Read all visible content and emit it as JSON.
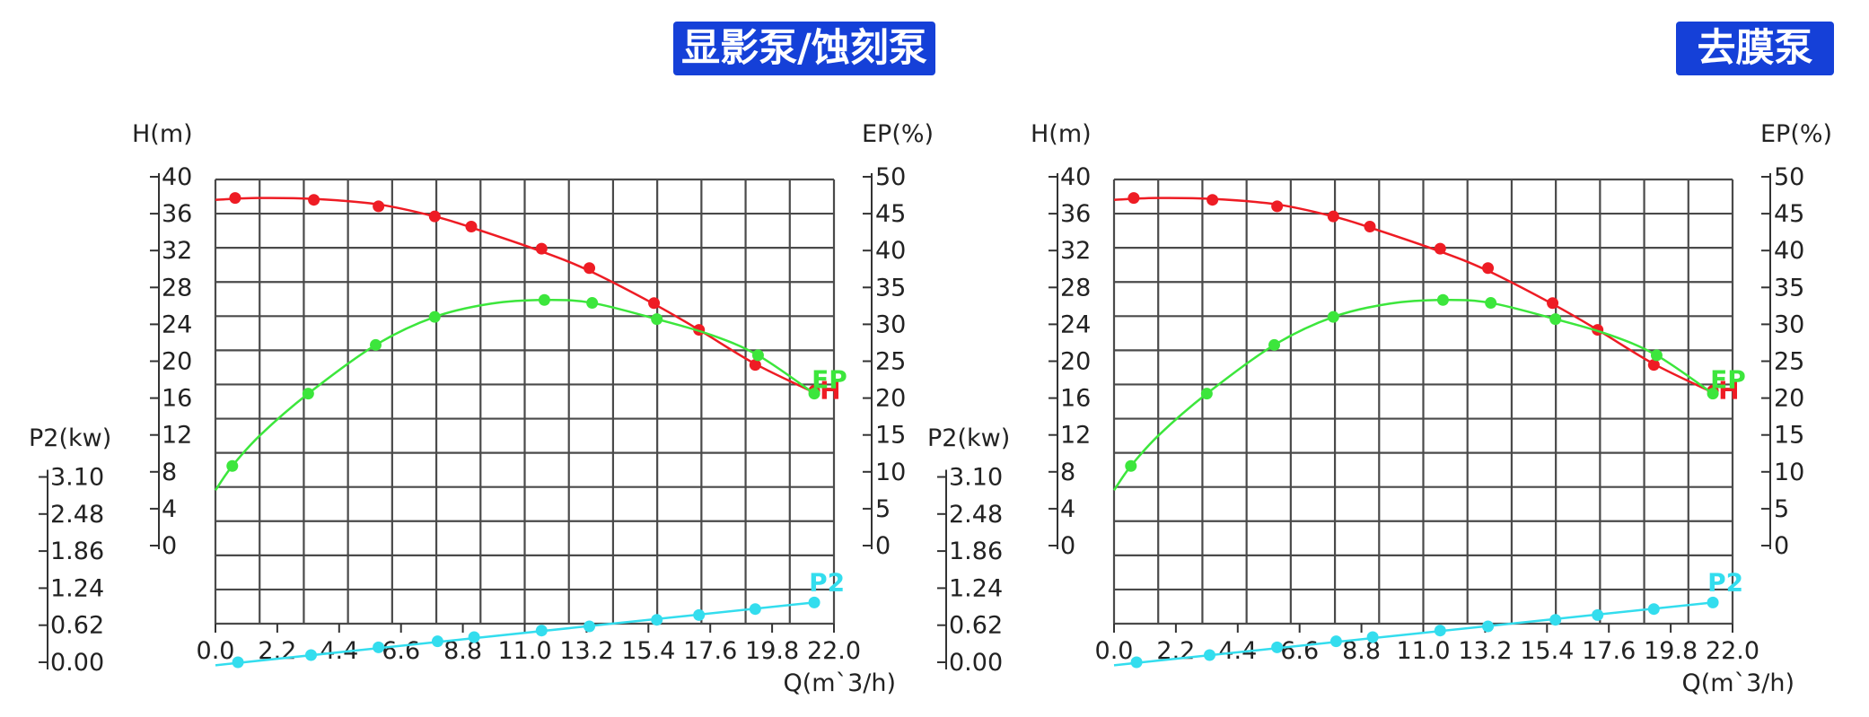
{
  "colors": {
    "title_bg": "#1540d8",
    "title_text": "#ffffff",
    "grid": "#4a4a4a",
    "axis": "#333333",
    "H": "#ee1c24",
    "EP": "#3ce63c",
    "P2": "#33ddee"
  },
  "chart_data": [
    {
      "type": "line",
      "title": "显影泵/蚀刻泵",
      "xlabel": "Q(m`3/h)",
      "ylabel_left": "H(m)",
      "ylabel_right": "EP(%)",
      "ylabel_power": "P2(kw)",
      "x_ticks": [
        "0.0",
        "2.2",
        "4.4",
        "6.6",
        "8.8",
        "11.0",
        "13.2",
        "15.4",
        "17.6",
        "19.8",
        "22.0"
      ],
      "h_ticks": [
        "0",
        "4",
        "8",
        "12",
        "16",
        "20",
        "24",
        "28",
        "32",
        "36",
        "40"
      ],
      "ep_ticks": [
        "0",
        "5",
        "10",
        "15",
        "20",
        "25",
        "30",
        "35",
        "40",
        "45",
        "50"
      ],
      "p2_ticks": [
        "0.00",
        "0.62",
        "1.24",
        "1.86",
        "2.48",
        "3.10"
      ],
      "xlim": [
        0,
        22
      ],
      "h_lim": [
        0,
        40
      ],
      "ep_lim": [
        0,
        50
      ],
      "p2_lim": [
        0,
        3.1
      ],
      "grid": true,
      "series": [
        {
          "name": "H",
          "axis": "H",
          "color": "#ee1c24",
          "points": [
            [
              0.7,
              37.7
            ],
            [
              3.5,
              37.5
            ],
            [
              5.8,
              36.8
            ],
            [
              7.8,
              35.7
            ],
            [
              9.1,
              34.6
            ],
            [
              11.6,
              32.2
            ],
            [
              13.3,
              30.1
            ],
            [
              15.6,
              26.3
            ],
            [
              17.2,
              23.4
            ],
            [
              19.2,
              19.6
            ],
            [
              21.3,
              16.8
            ]
          ],
          "curve": [
            [
              0,
              37.5
            ],
            [
              1.5,
              37.7
            ],
            [
              3.5,
              37.6
            ],
            [
              5.8,
              37.0
            ],
            [
              7.8,
              35.7
            ],
            [
              9.1,
              34.5
            ],
            [
              11.6,
              31.9
            ],
            [
              13.3,
              29.8
            ],
            [
              15.6,
              26.2
            ],
            [
              17.2,
              23.4
            ],
            [
              19.2,
              19.7
            ],
            [
              21.3,
              16.6
            ]
          ]
        },
        {
          "name": "EP",
          "axis": "EP",
          "color": "#3ce63c",
          "points": [
            [
              0.6,
              10.8
            ],
            [
              3.3,
              20.6
            ],
            [
              5.7,
              27.2
            ],
            [
              7.8,
              31.0
            ],
            [
              11.7,
              33.3
            ],
            [
              13.4,
              32.9
            ],
            [
              15.7,
              30.7
            ],
            [
              19.3,
              25.8
            ],
            [
              21.3,
              20.6
            ]
          ],
          "curve": [
            [
              0,
              7.5
            ],
            [
              0.6,
              10.8
            ],
            [
              1.6,
              15.0
            ],
            [
              3.3,
              20.6
            ],
            [
              5.7,
              27.2
            ],
            [
              7.8,
              31.0
            ],
            [
              9.8,
              32.8
            ],
            [
              11.7,
              33.3
            ],
            [
              13.4,
              32.9
            ],
            [
              15.7,
              30.7
            ],
            [
              17.6,
              28.6
            ],
            [
              19.3,
              25.8
            ],
            [
              21.3,
              20.6
            ]
          ]
        },
        {
          "name": "P2",
          "axis": "P2",
          "color": "#33ddee",
          "points": [
            [
              0.8,
              0.0
            ],
            [
              3.4,
              0.12
            ],
            [
              5.8,
              0.25
            ],
            [
              7.9,
              0.35
            ],
            [
              9.2,
              0.42
            ],
            [
              11.6,
              0.53
            ],
            [
              13.3,
              0.6
            ],
            [
              15.7,
              0.71
            ],
            [
              17.2,
              0.79
            ],
            [
              19.2,
              0.89
            ],
            [
              21.3,
              1.0
            ]
          ],
          "curve": [
            [
              0,
              -0.05
            ],
            [
              21.3,
              1.0
            ]
          ]
        }
      ],
      "curve_labels": {
        "EP": "EP",
        "H": "H",
        "P2": "P2"
      }
    },
    {
      "type": "line",
      "title": "去膜泵",
      "xlabel": "Q(m`3/h)",
      "ylabel_left": "H(m)",
      "ylabel_right": "EP(%)",
      "ylabel_power": "P2(kw)",
      "x_ticks": [
        "0.0",
        "2.2",
        "4.4",
        "6.6",
        "8.8",
        "11.0",
        "13.2",
        "15.4",
        "17.6",
        "19.8",
        "22.0"
      ],
      "h_ticks": [
        "0",
        "4",
        "8",
        "12",
        "16",
        "20",
        "24",
        "28",
        "32",
        "36",
        "40"
      ],
      "ep_ticks": [
        "0",
        "5",
        "10",
        "15",
        "20",
        "25",
        "30",
        "35",
        "40",
        "45",
        "50"
      ],
      "p2_ticks": [
        "0.00",
        "0.62",
        "1.24",
        "1.86",
        "2.48",
        "3.10"
      ],
      "xlim": [
        0,
        22
      ],
      "h_lim": [
        0,
        40
      ],
      "ep_lim": [
        0,
        50
      ],
      "p2_lim": [
        0,
        3.1
      ],
      "grid": true,
      "series": [
        {
          "name": "H",
          "axis": "H",
          "color": "#ee1c24",
          "points": [
            [
              0.7,
              37.7
            ],
            [
              3.5,
              37.5
            ],
            [
              5.8,
              36.8
            ],
            [
              7.8,
              35.7
            ],
            [
              9.1,
              34.6
            ],
            [
              11.6,
              32.2
            ],
            [
              13.3,
              30.1
            ],
            [
              15.6,
              26.3
            ],
            [
              17.2,
              23.4
            ],
            [
              19.2,
              19.6
            ],
            [
              21.3,
              16.8
            ]
          ],
          "curve": [
            [
              0,
              37.5
            ],
            [
              1.5,
              37.7
            ],
            [
              3.5,
              37.6
            ],
            [
              5.8,
              37.0
            ],
            [
              7.8,
              35.7
            ],
            [
              9.1,
              34.5
            ],
            [
              11.6,
              31.9
            ],
            [
              13.3,
              29.8
            ],
            [
              15.6,
              26.2
            ],
            [
              17.2,
              23.4
            ],
            [
              19.2,
              19.7
            ],
            [
              21.3,
              16.6
            ]
          ]
        },
        {
          "name": "EP",
          "axis": "EP",
          "color": "#3ce63c",
          "points": [
            [
              0.6,
              10.8
            ],
            [
              3.3,
              20.6
            ],
            [
              5.7,
              27.2
            ],
            [
              7.8,
              31.0
            ],
            [
              11.7,
              33.3
            ],
            [
              13.4,
              32.9
            ],
            [
              15.7,
              30.7
            ],
            [
              19.3,
              25.8
            ],
            [
              21.3,
              20.6
            ]
          ],
          "curve": [
            [
              0,
              7.5
            ],
            [
              0.6,
              10.8
            ],
            [
              1.6,
              15.0
            ],
            [
              3.3,
              20.6
            ],
            [
              5.7,
              27.2
            ],
            [
              7.8,
              31.0
            ],
            [
              9.8,
              32.8
            ],
            [
              11.7,
              33.3
            ],
            [
              13.4,
              32.9
            ],
            [
              15.7,
              30.7
            ],
            [
              17.6,
              28.6
            ],
            [
              19.3,
              25.8
            ],
            [
              21.3,
              20.6
            ]
          ]
        },
        {
          "name": "P2",
          "axis": "P2",
          "color": "#33ddee",
          "points": [
            [
              0.8,
              0.0
            ],
            [
              3.4,
              0.12
            ],
            [
              5.8,
              0.25
            ],
            [
              7.9,
              0.35
            ],
            [
              9.2,
              0.42
            ],
            [
              11.6,
              0.53
            ],
            [
              13.3,
              0.6
            ],
            [
              15.7,
              0.71
            ],
            [
              17.2,
              0.79
            ],
            [
              19.2,
              0.89
            ],
            [
              21.3,
              1.0
            ]
          ],
          "curve": [
            [
              0,
              -0.05
            ],
            [
              21.3,
              1.0
            ]
          ]
        }
      ],
      "curve_labels": {
        "EP": "EP",
        "H": "H",
        "P2": "P2"
      }
    }
  ]
}
